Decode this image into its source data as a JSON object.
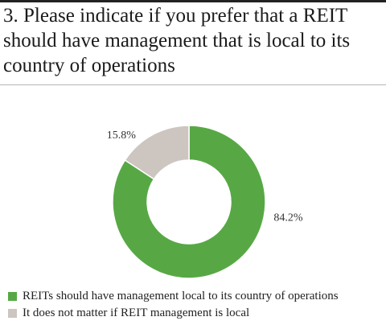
{
  "header": {
    "title": "3. Please indicate if you prefer that a REIT should have management that is local to its country of operations"
  },
  "chart_data": {
    "type": "pie",
    "donut": true,
    "categories": [
      "REITs should have management local to its country of operations",
      "It does not matter if REIT management is local"
    ],
    "values": [
      84.2,
      15.8
    ],
    "value_labels": [
      "84.2%",
      "15.8%"
    ],
    "colors": [
      "#57a845",
      "#cdc5c0"
    ],
    "legend_position": "bottom"
  }
}
